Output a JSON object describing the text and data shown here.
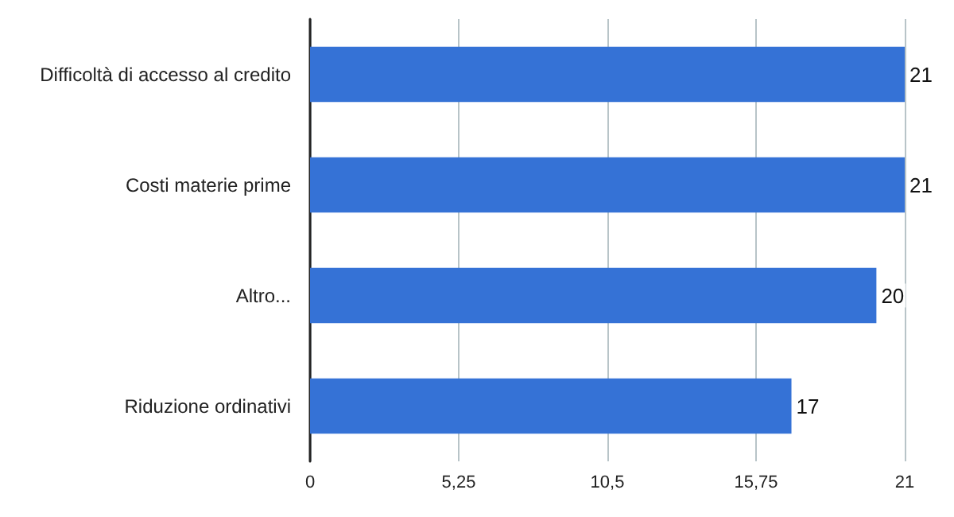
{
  "chart_data": {
    "type": "bar",
    "orientation": "horizontal",
    "categories": [
      "Difficoltà di accesso al credito",
      "Costi materie prime",
      "Altro...",
      "Riduzione ordinativi"
    ],
    "values": [
      21,
      21,
      20,
      17
    ],
    "color": "#3572d6",
    "xlim": [
      0,
      21
    ],
    "xticks": [
      0,
      {
        "value": 5.25,
        "label": "5,25"
      },
      {
        "value": 10.5,
        "label": "10,5"
      },
      {
        "value": 15.75,
        "label": "15,75"
      },
      21
    ],
    "grid": "x",
    "data_labels": true
  }
}
